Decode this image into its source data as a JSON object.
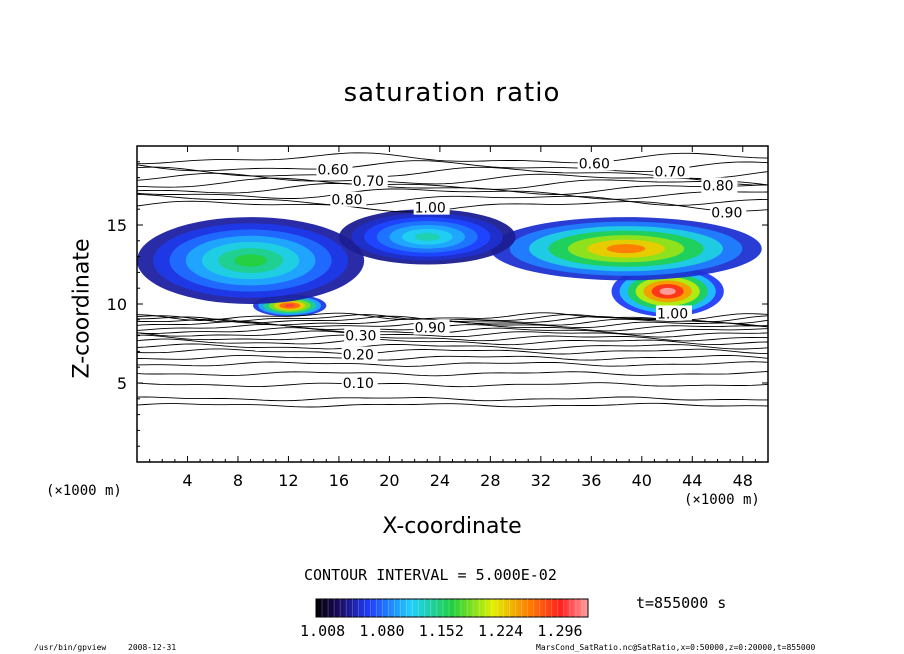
{
  "chart_data": {
    "type": "heatmap",
    "title": "saturation ratio",
    "xlabel": "X-coordinate",
    "ylabel": "Z-coordinate",
    "x_unit_left": "(×1000 m)",
    "x_unit_right": "(×1000 m)",
    "xlim": [
      0,
      50
    ],
    "ylim": [
      0,
      20
    ],
    "x_ticks": [
      4,
      8,
      12,
      16,
      20,
      24,
      28,
      32,
      36,
      40,
      44,
      48
    ],
    "y_ticks": [
      5,
      10,
      15
    ],
    "contour_interval_text": "CONTOUR INTERVAL = 5.000E-02",
    "time_text": "t=855000 s",
    "colorbar": {
      "min": 1.0,
      "max": 1.33,
      "tick_labels": [
        "1.008",
        "1.080",
        "1.152",
        "1.224",
        "1.296"
      ]
    },
    "contour_labels": [
      {
        "text": "0.60",
        "x": 14.3,
        "z": 18.5
      },
      {
        "text": "0.70",
        "x": 17.1,
        "z": 17.8
      },
      {
        "text": "0.80",
        "x": 15.4,
        "z": 16.6
      },
      {
        "text": "0.60",
        "x": 35.0,
        "z": 18.9
      },
      {
        "text": "0.70",
        "x": 41.0,
        "z": 18.4
      },
      {
        "text": "0.80",
        "x": 44.8,
        "z": 17.5
      },
      {
        "text": "0.90",
        "x": 45.5,
        "z": 15.8
      },
      {
        "text": "1.00",
        "x": 22.0,
        "z": 16.1
      },
      {
        "text": "1.00",
        "x": 41.2,
        "z": 9.4
      },
      {
        "text": "0.90",
        "x": 22.0,
        "z": 8.5
      },
      {
        "text": "0.30",
        "x": 16.5,
        "z": 8.0
      },
      {
        "text": "0.20",
        "x": 16.3,
        "z": 6.8
      },
      {
        "text": "0.10",
        "x": 16.3,
        "z": 5.0
      }
    ],
    "supersaturated_regions": [
      {
        "x_range": [
          9.2,
          15.0
        ],
        "z_range": [
          9.2,
          10.6
        ],
        "peak": 1.3
      },
      {
        "x_range": [
          37.6,
          46.5
        ],
        "z_range": [
          9.2,
          12.4
        ],
        "peak": 1.33
      },
      {
        "x_range": [
          28.0,
          49.5
        ],
        "z_range": [
          11.5,
          15.5
        ],
        "peak": 1.25
      },
      {
        "x_range": [
          0.0,
          18.0
        ],
        "z_range": [
          10.0,
          15.5
        ],
        "peak": 1.15
      },
      {
        "x_range": [
          16.0,
          30.0
        ],
        "z_range": [
          12.5,
          16.0
        ],
        "peak": 1.12
      }
    ]
  },
  "footer": {
    "program": "/usr/bin/gpview",
    "date": "2008-12-31",
    "source": "MarsCond_SatRatio.nc@SatRatio,x=0:50000,z=0:20000,t=855000"
  }
}
